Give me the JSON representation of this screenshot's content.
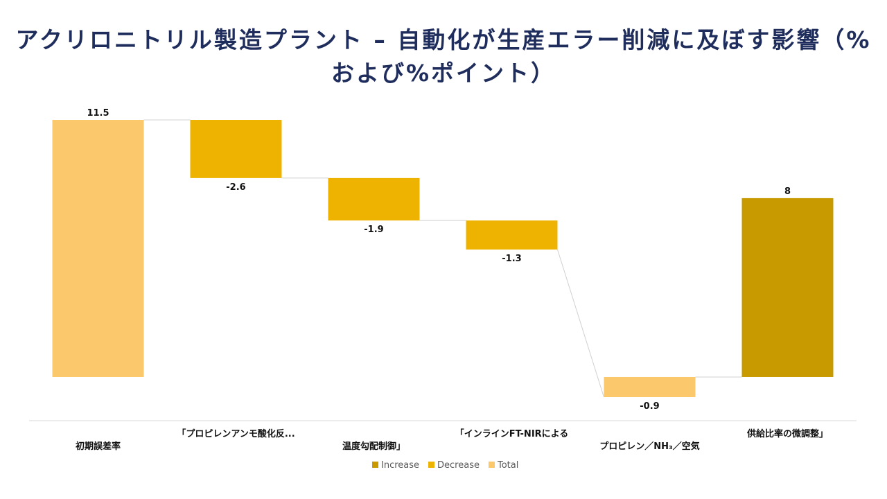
{
  "title": "アクリロニトリル製造プラント – 自動化が生産エラー削減に及ぼす影響（%および%ポイント）",
  "colors": {
    "increase": "#C89A00",
    "decrease": "#EDB300",
    "total": "#FBC96B",
    "connector": "#d0d0d0",
    "axis": "#d9d9d9",
    "title": "#1f2d5c"
  },
  "chart_data": {
    "type": "waterfall",
    "title": "アクリロニトリル製造プラント – 自動化が生産エラー削減に及ぼす影響（%および%ポイント）",
    "categories": [
      "初期誤差率",
      "「プロピレンアンモ酸化反...",
      "温度勾配制御」",
      "「インラインFT-NIRによる",
      "プロピレン／NH₃／空気",
      "供給比率の微調整」"
    ],
    "values": [
      11.5,
      -2.6,
      -1.9,
      -1.3,
      -0.9,
      8
    ],
    "labels": [
      "11.5",
      "-2.6",
      "-1.9",
      "-1.3",
      "-0.9",
      "8"
    ],
    "kinds": [
      "total",
      "decrease",
      "decrease",
      "decrease",
      "total",
      "increase"
    ],
    "ylim": [
      -0.9,
      11.5
    ],
    "legend": {
      "position": "bottom",
      "items": [
        {
          "key": "increase",
          "label": "Increase"
        },
        {
          "key": "decrease",
          "label": "Decrease"
        },
        {
          "key": "total",
          "label": "Total"
        }
      ]
    }
  }
}
